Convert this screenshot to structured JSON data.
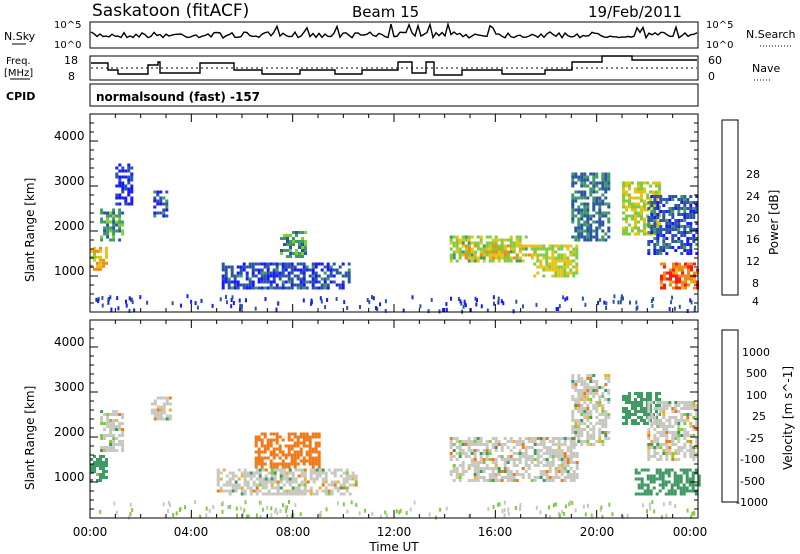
{
  "header": {
    "station": "Saskatoon (fitACF)",
    "beam": "Beam 15",
    "date": "19/Feb/2011"
  },
  "panels": {
    "nsky_label": "N.Sky",
    "nsky_ticks": [
      "10^5",
      "10^0"
    ],
    "nsearch_label": "N.Search",
    "freq_label_top": "Freq.",
    "freq_label_bottom": "[MHz]",
    "freq_ticks": [
      "18",
      "8"
    ],
    "nave_label": "Nave",
    "nave_ticks": [
      "60",
      "0"
    ],
    "cpid_label": "CPID",
    "cpid_text": "normalsound (fast) -157"
  },
  "chart_data": [
    {
      "type": "heatmap",
      "name": "power",
      "xlabel": "Time UT",
      "ylabel": "Slant Range [km]",
      "xlim": [
        0,
        24
      ],
      "ylim": [
        200,
        4600
      ],
      "x_ticks": [
        "00:00",
        "04:00",
        "08:00",
        "12:00",
        "16:00",
        "20:00",
        "00:00"
      ],
      "y_ticks": [
        1000,
        2000,
        3000,
        4000
      ],
      "colorbar": {
        "label": "Power [dB]",
        "levels": [
          4,
          8,
          12,
          16,
          20,
          24,
          28
        ],
        "colors": [
          "#1a1aff",
          "#2b56a8",
          "#3f9a63",
          "#7fcc3f",
          "#e6c21a",
          "#f08a1a",
          "#ff1a1a"
        ]
      },
      "regions": [
        {
          "t": [
            0.0,
            0.6
          ],
          "r": [
            1150,
            1650
          ],
          "v": 22
        },
        {
          "t": [
            0.4,
            1.3
          ],
          "r": [
            1800,
            2500
          ],
          "v": 14
        },
        {
          "t": [
            1.0,
            1.6
          ],
          "r": [
            2600,
            3500
          ],
          "v": 6
        },
        {
          "t": [
            2.5,
            3.0
          ],
          "r": [
            2300,
            2900
          ],
          "v": 10
        },
        {
          "t": [
            5.2,
            10.2
          ],
          "r": [
            700,
            1300
          ],
          "v": 9
        },
        {
          "t": [
            7.5,
            8.5
          ],
          "r": [
            1400,
            2000
          ],
          "v": 14
        },
        {
          "t": [
            14.2,
            17.2
          ],
          "r": [
            1300,
            1900
          ],
          "v": 18
        },
        {
          "t": [
            14.8,
            17.6
          ],
          "r": [
            1400,
            1700
          ],
          "v": 22
        },
        {
          "t": [
            17.5,
            19.2
          ],
          "r": [
            1000,
            1700
          ],
          "v": 20
        },
        {
          "t": [
            19.0,
            20.5
          ],
          "r": [
            1800,
            3300
          ],
          "v": 12
        },
        {
          "t": [
            21.0,
            22.5
          ],
          "r": [
            1900,
            3100
          ],
          "v": 20
        },
        {
          "t": [
            22.5,
            24.0
          ],
          "r": [
            700,
            1300
          ],
          "v": 27
        },
        {
          "t": [
            22.0,
            24.0
          ],
          "r": [
            1500,
            2800
          ],
          "v": 10
        }
      ]
    },
    {
      "type": "heatmap",
      "name": "velocity",
      "xlabel": "Time UT",
      "ylabel": "Slant Range [km]",
      "xlim": [
        0,
        24
      ],
      "ylim": [
        200,
        4600
      ],
      "x_ticks": [
        "00:00",
        "04:00",
        "08:00",
        "12:00",
        "16:00",
        "20:00",
        "00:00"
      ],
      "y_ticks": [
        1000,
        2000,
        3000,
        4000
      ],
      "colorbar": {
        "label": "Velocity [m s^-1]",
        "levels": [
          1000,
          500,
          100,
          25,
          -25,
          -100,
          -500,
          -1000
        ],
        "colors": [
          "#1a2aa8",
          "#2f6ca0",
          "#3f9a63",
          "#7fcc3f",
          "#c8c8c0",
          "#e6b23a",
          "#f07a1a",
          "#ff1a1a"
        ]
      },
      "regions": [
        {
          "t": [
            0.0,
            0.6
          ],
          "r": [
            1000,
            1600
          ],
          "v": 200
        },
        {
          "t": [
            0.4,
            1.3
          ],
          "r": [
            1700,
            2600
          ],
          "v": 0
        },
        {
          "t": [
            2.4,
            3.2
          ],
          "r": [
            2400,
            2900
          ],
          "v": 0
        },
        {
          "t": [
            5.0,
            10.5
          ],
          "r": [
            700,
            1300
          ],
          "v": 0
        },
        {
          "t": [
            6.5,
            9.0
          ],
          "r": [
            1300,
            2100
          ],
          "v": -300
        },
        {
          "t": [
            14.2,
            19.2
          ],
          "r": [
            1000,
            2000
          ],
          "v": 0
        },
        {
          "t": [
            19.0,
            20.5
          ],
          "r": [
            1800,
            3400
          ],
          "v": 0
        },
        {
          "t": [
            21.0,
            22.5
          ],
          "r": [
            2300,
            3000
          ],
          "v": 300
        },
        {
          "t": [
            21.5,
            24.0
          ],
          "r": [
            700,
            1300
          ],
          "v": 300
        },
        {
          "t": [
            22.0,
            24.0
          ],
          "r": [
            1500,
            2800
          ],
          "v": 0
        }
      ]
    }
  ]
}
